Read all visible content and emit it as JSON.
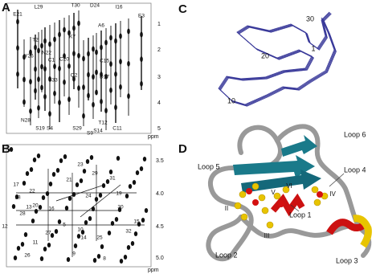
{
  "panel_a": {
    "label": "A",
    "residues": [
      "E21",
      "L29",
      "T30",
      "D24",
      "I16",
      "E3",
      "T2",
      "K7",
      "A6",
      "Y26",
      "N22",
      "C1",
      "C20",
      "S33",
      "Q2",
      "C15",
      "D17",
      "N28",
      "S19",
      "S4",
      "S29",
      "S9",
      "S14",
      "T12",
      "C11"
    ],
    "ticks": [
      "1",
      "2",
      "3",
      "4",
      "5"
    ],
    "unit": "ppm"
  },
  "panel_b": {
    "label": "B",
    "peaks": [
      "23",
      "29",
      "31",
      "21",
      "17",
      "24",
      "19",
      "22",
      "18",
      "13",
      "20",
      "16",
      "28",
      "12",
      "27",
      "14",
      "25",
      "11",
      "26",
      "9",
      "8",
      "30",
      "32",
      "5",
      "15",
      "10"
    ],
    "ticks": [
      "3.5",
      "4.0",
      "4.5",
      "5.0"
    ],
    "unit": "ppm"
  },
  "panel_c": {
    "label": "C",
    "residues": [
      "30",
      "20",
      "1",
      "10"
    ]
  },
  "panel_d": {
    "label": "D",
    "loops": [
      "Loop 6",
      "Loop 5",
      "Loop 4",
      "Loop 1",
      "Loop 2",
      "Loop 3"
    ],
    "bonds": [
      "II",
      "III",
      "IV",
      "V",
      "VI"
    ]
  }
}
